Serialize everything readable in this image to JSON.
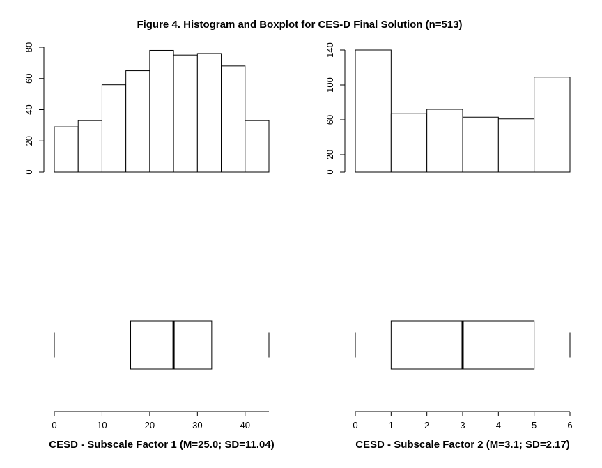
{
  "figure": {
    "title": "Figure 4. Histogram and Boxplot for CES-D Final Solution (n=513)"
  },
  "chart_data": [
    {
      "type": "bar",
      "subtype": "histogram",
      "bin_edges": [
        0,
        5,
        10,
        15,
        20,
        25,
        30,
        35,
        40,
        45
      ],
      "values": [
        29,
        33,
        56,
        65,
        78,
        75,
        76,
        68,
        33
      ],
      "yticks": [
        "0",
        "20",
        "40",
        "60",
        "80"
      ],
      "ylim": [
        0,
        80
      ]
    },
    {
      "type": "bar",
      "subtype": "histogram",
      "bin_edges": [
        0,
        1,
        2,
        3,
        4,
        5,
        6
      ],
      "values": [
        140,
        67,
        72,
        63,
        61,
        109
      ],
      "yticks": [
        "0",
        "20",
        "60",
        "100",
        "140"
      ],
      "ylim": [
        0,
        140
      ]
    },
    {
      "type": "boxplot",
      "stats": {
        "min": 0,
        "q1": 16,
        "median": 25,
        "q3": 33,
        "max": 45
      },
      "xticks": [
        "0",
        "10",
        "20",
        "30",
        "40"
      ],
      "xlim": [
        0,
        45
      ],
      "xlabel": "CESD - Subscale Factor 1 (M=25.0; SD=11.04)"
    },
    {
      "type": "boxplot",
      "stats": {
        "min": 0,
        "q1": 1,
        "median": 3,
        "q3": 5,
        "max": 6
      },
      "xticks": [
        "0",
        "1",
        "2",
        "3",
        "4",
        "5",
        "6"
      ],
      "xlim": [
        0,
        6
      ],
      "xlabel": "CESD - Subscale Factor 2 (M=3.1; SD=2.17)"
    }
  ]
}
